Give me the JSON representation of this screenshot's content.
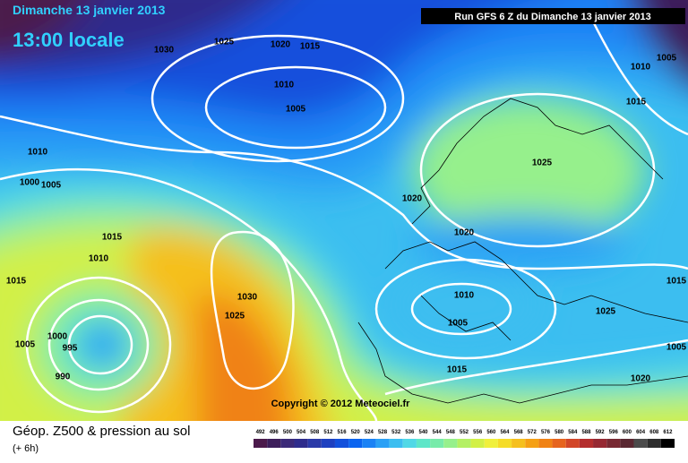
{
  "header": {
    "date": "Dimanche 13 janvier 2013",
    "time": "13:00 locale",
    "run": "Run GFS 6 Z du Dimanche 13 janvier 2013"
  },
  "copyright": "Copyright © 2012 Meteociel.fr",
  "legend": {
    "title": "Géop. Z500 & pression au sol",
    "subtitle": "(+ 6h)"
  },
  "colorbar": {
    "ticks": [
      492,
      496,
      500,
      504,
      508,
      512,
      516,
      520,
      524,
      528,
      532,
      536,
      540,
      544,
      548,
      552,
      556,
      560,
      564,
      568,
      572,
      576,
      580,
      584,
      588,
      592,
      596,
      600,
      604,
      608,
      612
    ],
    "colors": [
      "#4b1a4b",
      "#3c1e5a",
      "#3b2a78",
      "#2e2c8c",
      "#2a3aa8",
      "#1e40c0",
      "#1250dc",
      "#0a64f0",
      "#1a82f5",
      "#2aa0f5",
      "#3cbef0",
      "#50d8e6",
      "#5ee6c8",
      "#78ebaa",
      "#96f08c",
      "#b4f064",
      "#d2f046",
      "#f0f03c",
      "#f5dc28",
      "#f5c01e",
      "#f5a014",
      "#f08214",
      "#e6641e",
      "#d24628",
      "#b42d2d",
      "#962832",
      "#782832",
      "#5a2832",
      "#4b4b4b",
      "#2d2d2d",
      "#000000"
    ]
  },
  "isobar_labels": [
    "1025",
    "1030",
    "1020",
    "1015",
    "1010",
    "1005",
    "1010",
    "1005",
    "1000",
    "1020",
    "1025",
    "1020",
    "1015",
    "1010",
    "1015",
    "1030",
    "1025",
    "1010",
    "1005",
    "1025",
    "1000",
    "995",
    "1005",
    "990",
    "1015",
    "1020",
    "1010",
    "1005",
    "1015",
    "1015",
    "1005"
  ]
}
